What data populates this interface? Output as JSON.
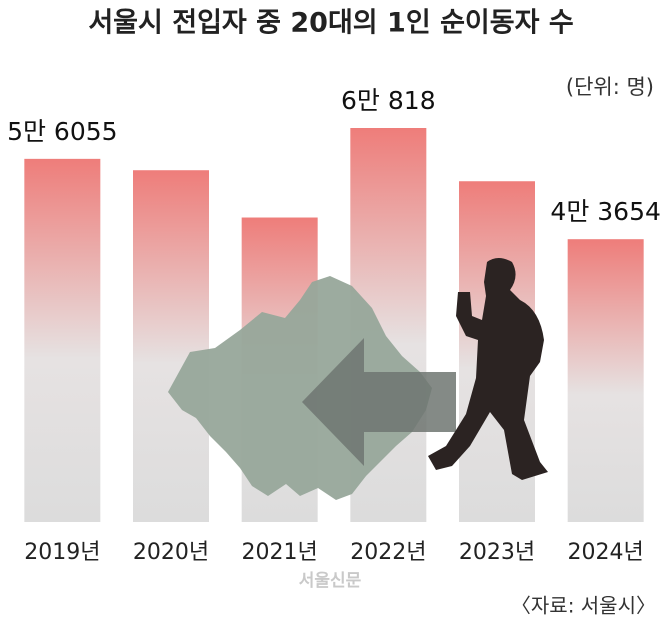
{
  "chart_data": {
    "type": "bar",
    "title": "서울시 전입자 중 20대의 1인 순이동자 수",
    "unit": "(단위: 명)",
    "source": "〈자료: 서울시〉",
    "watermark": "서울신문",
    "categories": [
      "2019년",
      "2020년",
      "2021년",
      "2022년",
      "2023년",
      "2024년"
    ],
    "values": [
      56055,
      54300,
      47000,
      60818,
      52600,
      43654
    ],
    "value_labels": [
      "5만 6055",
      null,
      null,
      "6만 818",
      null,
      "4만 3654"
    ],
    "color": "#ee7d7a"
  }
}
